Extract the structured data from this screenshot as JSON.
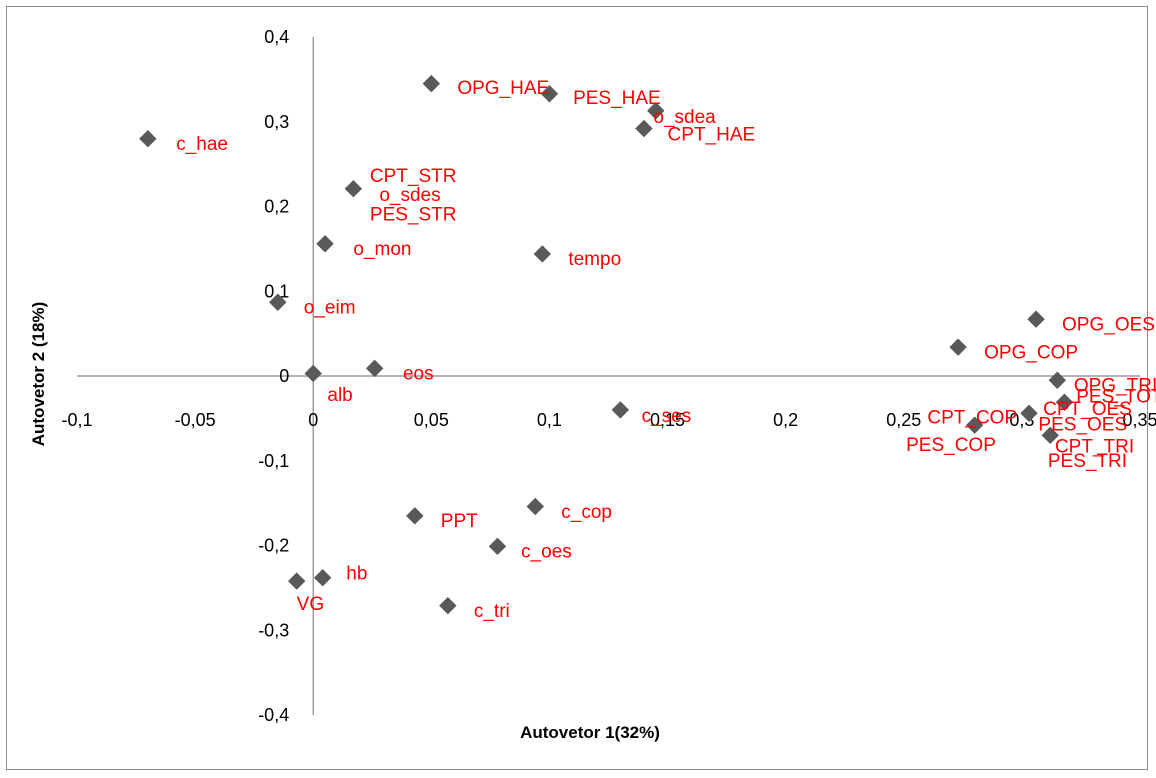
{
  "chart_data": {
    "type": "scatter",
    "title": "",
    "xlabel": "Autovetor 1(32%)",
    "ylabel": "Autovetor 2 (18%)",
    "xlim": [
      -0.1,
      0.35
    ],
    "ylim": [
      -0.4,
      0.4
    ],
    "x_ticks": [
      {
        "value": -0.1,
        "label": "-0,1"
      },
      {
        "value": -0.05,
        "label": "-0,05"
      },
      {
        "value": 0,
        "label": "0"
      },
      {
        "value": 0.05,
        "label": "0,05"
      },
      {
        "value": 0.1,
        "label": "0,1"
      },
      {
        "value": 0.15,
        "label": "0,15"
      },
      {
        "value": 0.2,
        "label": "0,2"
      },
      {
        "value": 0.25,
        "label": "0,25"
      },
      {
        "value": 0.3,
        "label": "0,3"
      },
      {
        "value": 0.35,
        "label": "0,35"
      }
    ],
    "y_ticks": [
      {
        "value": 0.4,
        "label": "0,4"
      },
      {
        "value": 0.3,
        "label": "0,3"
      },
      {
        "value": 0.2,
        "label": "0,2"
      },
      {
        "value": 0.1,
        "label": "0,1"
      },
      {
        "value": 0,
        "label": "0"
      },
      {
        "value": -0.1,
        "label": "-0,1"
      },
      {
        "value": -0.2,
        "label": "-0,2"
      },
      {
        "value": -0.3,
        "label": "-0,3"
      },
      {
        "value": -0.4,
        "label": "-0,4"
      }
    ],
    "grid": false,
    "legend": "none",
    "marker_color": "#595959",
    "label_color": "#ff0000",
    "points": [
      {
        "x": -0.07,
        "y": 0.28
      },
      {
        "x": 0.05,
        "y": 0.345
      },
      {
        "x": 0.1,
        "y": 0.333
      },
      {
        "x": 0.145,
        "y": 0.313
      },
      {
        "x": 0.14,
        "y": 0.292
      },
      {
        "x": 0.017,
        "y": 0.221
      },
      {
        "x": 0.005,
        "y": 0.156
      },
      {
        "x": 0.097,
        "y": 0.144
      },
      {
        "x": -0.015,
        "y": 0.087
      },
      {
        "x": 0,
        "y": 0.003
      },
      {
        "x": 0.026,
        "y": 0.009
      },
      {
        "x": 0.13,
        "y": -0.04
      },
      {
        "x": 0.306,
        "y": 0.067
      },
      {
        "x": 0.273,
        "y": 0.034
      },
      {
        "x": 0.315,
        "y": -0.005
      },
      {
        "x": 0.318,
        "y": -0.031
      },
      {
        "x": 0.303,
        "y": -0.044
      },
      {
        "x": 0.28,
        "y": -0.058
      },
      {
        "x": 0.312,
        "y": -0.07
      },
      {
        "x": 0.043,
        "y": -0.165
      },
      {
        "x": 0.094,
        "y": -0.154
      },
      {
        "x": 0.078,
        "y": -0.201
      },
      {
        "x": 0.004,
        "y": -0.238
      },
      {
        "x": -0.007,
        "y": -0.242
      },
      {
        "x": 0.057,
        "y": -0.271
      }
    ],
    "labels": [
      {
        "text": "c_hae",
        "x": -0.058,
        "y": 0.275
      },
      {
        "text": "OPG_HAE",
        "x": 0.061,
        "y": 0.341
      },
      {
        "text": "PES_HAE",
        "x": 0.11,
        "y": 0.329
      },
      {
        "text": "o_sdea",
        "x": 0.144,
        "y": 0.307
      },
      {
        "text": "CPT_HAE",
        "x": 0.15,
        "y": 0.286
      },
      {
        "text": "CPT_STR",
        "x": 0.024,
        "y": 0.237
      },
      {
        "text": "o_sdes",
        "x": 0.028,
        "y": 0.215
      },
      {
        "text": "PES_STR",
        "x": 0.024,
        "y": 0.192
      },
      {
        "text": "o_mon",
        "x": 0.017,
        "y": 0.151
      },
      {
        "text": "tempo",
        "x": 0.108,
        "y": 0.139
      },
      {
        "text": "o_eim",
        "x": -0.004,
        "y": 0.082
      },
      {
        "text": "eos",
        "x": 0.038,
        "y": 0.004
      },
      {
        "text": "alb",
        "x": 0.006,
        "y": -0.021
      },
      {
        "text": "c_ses",
        "x": 0.139,
        "y": -0.046
      },
      {
        "text": "OPG_OES",
        "x": 0.317,
        "y": 0.062
      },
      {
        "text": "OPG_COP",
        "x": 0.284,
        "y": 0.029
      },
      {
        "text": "OPG_TRI",
        "x": 0.322,
        "y": -0.01
      },
      {
        "text": "PES_TOT",
        "x": 0.323,
        "y": -0.023
      },
      {
        "text": "CPT_OES",
        "x": 0.309,
        "y": -0.038
      },
      {
        "text": "PES_OES",
        "x": 0.307,
        "y": -0.056
      },
      {
        "text": "CPT_COP",
        "x": 0.26,
        "y": -0.048
      },
      {
        "text": "PES_COP",
        "x": 0.251,
        "y": -0.08
      },
      {
        "text": "CPT_TRI",
        "x": 0.314,
        "y": -0.082
      },
      {
        "text": "PES_TRI",
        "x": 0.311,
        "y": -0.099
      },
      {
        "text": "PPT",
        "x": 0.054,
        "y": -0.17
      },
      {
        "text": "c_cop",
        "x": 0.105,
        "y": -0.159
      },
      {
        "text": "c_oes",
        "x": 0.088,
        "y": -0.206
      },
      {
        "text": "hb",
        "x": 0.014,
        "y": -0.232
      },
      {
        "text": "VG",
        "x": -0.007,
        "y": -0.268
      },
      {
        "text": "c_tri",
        "x": 0.068,
        "y": -0.276
      }
    ]
  }
}
